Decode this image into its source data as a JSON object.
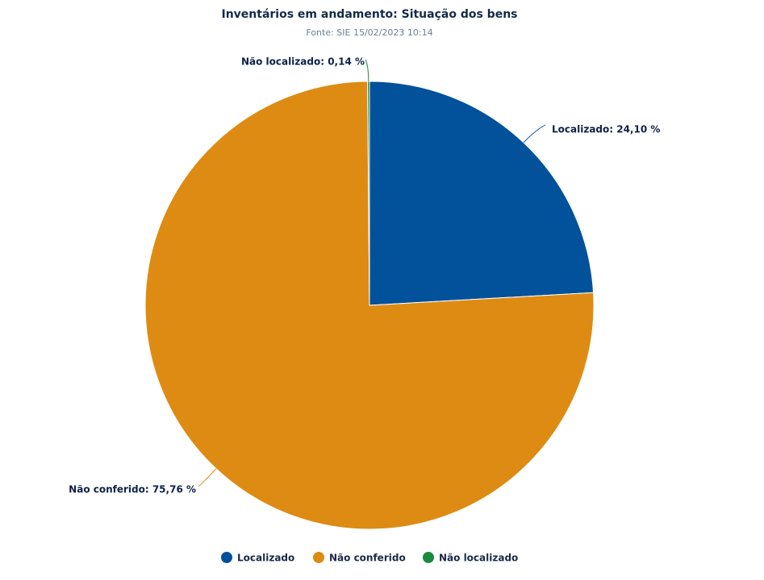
{
  "chart_data": {
    "type": "pie",
    "title": "Inventários em andamento: Situação dos bens",
    "subtitle": "Fonte: SIE 15/02/2023 10:14",
    "categories": [
      "Localizado",
      "Não conferido",
      "Não localizado"
    ],
    "values": [
      24.1,
      75.76,
      0.14
    ],
    "data_labels": [
      "Localizado: 24,10 %",
      "Não conferido: 75,76 %",
      "Não localizado: 0,14 %"
    ],
    "colors": [
      "#01529a",
      "#de8b13",
      "#1b8a3c"
    ],
    "legend": "bottom-center"
  }
}
